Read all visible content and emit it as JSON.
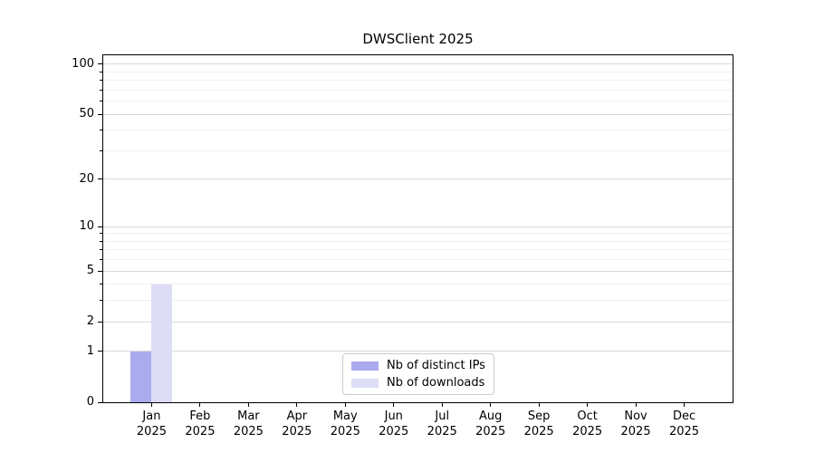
{
  "chart_data": {
    "type": "bar",
    "title": "DWSClient 2025",
    "y_scale": "log1p",
    "ylim": [
      0,
      113
    ],
    "y_major_ticks": [
      0,
      1,
      2,
      5,
      10,
      20,
      50,
      100
    ],
    "y_minor_ticks": [
      3,
      4,
      6,
      7,
      8,
      9,
      30,
      40,
      60,
      70,
      80,
      90
    ],
    "categories": [
      "Jan",
      "Feb",
      "Mar",
      "Apr",
      "May",
      "Jun",
      "Jul",
      "Aug",
      "Sep",
      "Oct",
      "Nov",
      "Dec"
    ],
    "category_year": "2025",
    "series": [
      {
        "name": "Nb of distinct IPs",
        "color": "#aaaaee",
        "values": [
          1,
          0,
          0,
          0,
          0,
          0,
          0,
          0,
          0,
          0,
          0,
          0
        ]
      },
      {
        "name": "Nb of downloads",
        "color": "#ddddf6",
        "values": [
          4,
          0,
          0,
          0,
          0,
          0,
          0,
          0,
          0,
          0,
          0,
          0
        ]
      }
    ],
    "legend": {
      "position": "lower-center"
    },
    "grid": {
      "major_color": "#d9d9d9",
      "minor_color": "#f0f0f0"
    },
    "axis_color": "#000000",
    "background": "#ffffff"
  }
}
